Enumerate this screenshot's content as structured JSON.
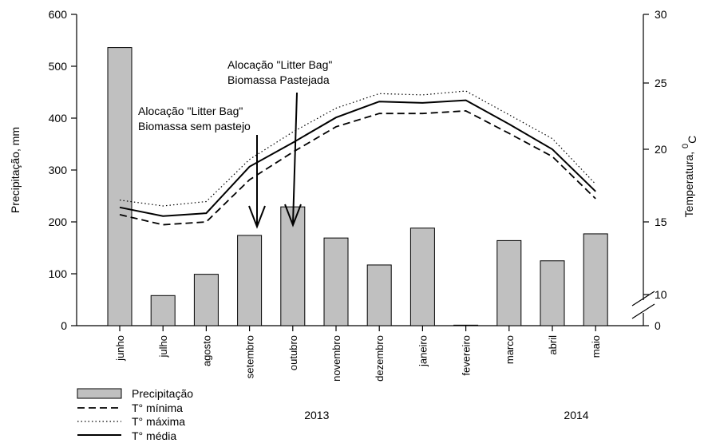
{
  "chart_data": {
    "type": "bar",
    "categories": [
      "junho",
      "julho",
      "agosto",
      "setembro",
      "outubro",
      "novembro",
      "dezembro",
      "janeiro",
      "fevereiro",
      "marco",
      "abril",
      "maio"
    ],
    "series": [
      {
        "name": "Precipitação",
        "type": "bar",
        "axis": "left",
        "values": [
          536,
          58,
          99,
          174,
          229,
          169,
          117,
          188,
          1,
          164,
          125,
          177
        ]
      },
      {
        "name": "T° mínima",
        "type": "line",
        "style": "dashed",
        "axis": "right",
        "values": [
          15.5,
          14.8,
          15.0,
          17.9,
          19.8,
          21.7,
          22.7,
          22.7,
          22.9,
          21.2,
          19.5,
          16.6
        ]
      },
      {
        "name": "T° máxima",
        "type": "line",
        "style": "dotted",
        "axis": "right",
        "values": [
          16.5,
          16.1,
          16.4,
          19.3,
          21.3,
          23.1,
          24.2,
          24.1,
          24.4,
          22.6,
          20.8,
          17.6
        ]
      },
      {
        "name": "T° média",
        "type": "line",
        "style": "solid",
        "axis": "right",
        "values": [
          16.0,
          15.4,
          15.6,
          18.8,
          20.5,
          22.4,
          23.6,
          23.5,
          23.7,
          21.9,
          20.0,
          17.1
        ]
      }
    ],
    "ylabel": "Precipitação, mm",
    "ylim": [
      0,
      600
    ],
    "yticks": [
      0,
      100,
      200,
      300,
      400,
      500,
      600
    ],
    "y2label": "Temperatura, 0C",
    "y2label_main": "Temperatura,",
    "y2label_sup": "0",
    "y2label_sub": "C",
    "y2ticks_labels": [
      "0",
      "10",
      "15",
      "20",
      "25",
      "30"
    ],
    "y2_axis_break": true,
    "annotations": [
      {
        "lines": [
          "Alocação \"Litter Bag\"",
          "Biomassa sem pastejo"
        ],
        "category": "setembro"
      },
      {
        "lines": [
          "Alocação \"Litter Bag\"",
          "Biomassa Pastejada"
        ],
        "category": "outubro"
      }
    ],
    "years": [
      {
        "label": "2013",
        "under": "outubro"
      },
      {
        "label": "2014",
        "under": "abril"
      }
    ],
    "legend_position": "bottom-left",
    "grid": false,
    "colors": {
      "bar_fill": "#c0c0c0",
      "line": "#000000"
    }
  }
}
